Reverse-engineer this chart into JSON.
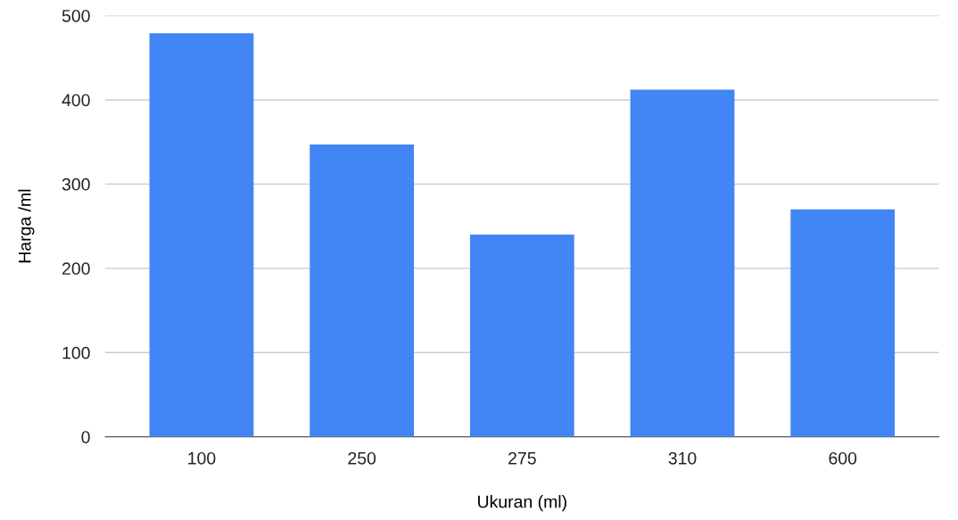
{
  "chart_data": {
    "type": "bar",
    "xlabel": "Ukuran (ml)",
    "ylabel": "Harga /ml",
    "categories": [
      "100",
      "250",
      "275",
      "310",
      "600"
    ],
    "values": [
      479,
      347,
      240,
      412,
      270
    ],
    "color": "#4285f4",
    "ylim": [
      0,
      500
    ],
    "yticks": [
      0,
      100,
      200,
      300,
      400,
      500
    ],
    "grid": "y"
  }
}
